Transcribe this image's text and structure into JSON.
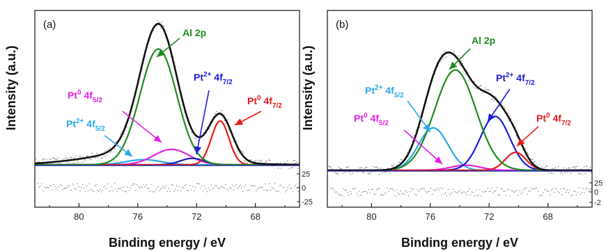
{
  "chart_data": [
    {
      "type": "line",
      "panel_label": "(a)",
      "xlabel": "Binding energy / eV",
      "ylabel": "Intensity (a.u.)",
      "xlim": [
        83,
        65
      ],
      "x_ticks": [
        80,
        76,
        72,
        68
      ],
      "residual_ticks": [
        "25",
        "0",
        "-25"
      ],
      "series": [
        {
          "name": "Envelope",
          "color": "#111111",
          "components": [
            [
              74.6,
              1.0,
              1.25
            ],
            [
              70.4,
              0.36,
              0.8
            ],
            [
              75.6,
              0.1,
              3.5
            ]
          ],
          "baseline": 0.0
        },
        {
          "name": "Al 2p",
          "color": "#1f8a1f",
          "components": [
            [
              74.6,
              0.9,
              1.25
            ]
          ]
        },
        {
          "name": "Pt0 4f7/2",
          "color": "#e31b1b",
          "components": [
            [
              70.4,
              0.34,
              0.6
            ]
          ]
        },
        {
          "name": "Pt2+ 4f7/2",
          "color": "#1b1bd6",
          "components": [
            [
              72.3,
              0.05,
              0.8
            ]
          ]
        },
        {
          "name": "Pt0 4f5/2",
          "color": "#e51ee5",
          "components": [
            [
              73.7,
              0.12,
              1.2
            ]
          ]
        },
        {
          "name": "Pt2+ 4f5/2",
          "color": "#2aa8e8",
          "components": [
            [
              75.6,
              0.04,
              1.2
            ]
          ]
        }
      ],
      "annotations": [
        {
          "base": "Al 2p",
          "sup": "",
          "sub": "",
          "color": "#1f8a1f"
        },
        {
          "base": "Pt",
          "sup": "2+",
          "mid": " 4f",
          "sub": "7/2",
          "color": "#1b1bd6"
        },
        {
          "base": "Pt",
          "sup": "0",
          "mid": " 4f",
          "sub": "7/2",
          "color": "#e31b1b"
        },
        {
          "base": "Pt",
          "sup": "0",
          "mid": " 4f",
          "sub": "5/2",
          "color": "#e51ee5"
        },
        {
          "base": "Pt",
          "sup": "2+",
          "mid": " 4f",
          "sub": "5/2",
          "color": "#2aa8e8"
        }
      ]
    },
    {
      "type": "line",
      "panel_label": "(b)",
      "xlabel": "Binding energy / eV",
      "ylabel": "Intensity (a.u.)",
      "xlim": [
        83,
        65
      ],
      "x_ticks": [
        80,
        76,
        72,
        68
      ],
      "residual_ticks": [
        "25",
        "0",
        "-2"
      ],
      "series": [
        {
          "name": "Envelope",
          "color": "#111111",
          "components": [
            [
              74.3,
              0.78,
              1.4
            ],
            [
              71.6,
              0.42,
              1.0
            ],
            [
              75.8,
              0.3,
              1.0
            ],
            [
              70.2,
              0.14,
              0.7
            ]
          ]
        },
        {
          "name": "Al 2p",
          "color": "#1f8a1f",
          "components": [
            [
              74.3,
              0.78,
              1.4
            ]
          ]
        },
        {
          "name": "Pt0 4f7/2",
          "color": "#e31b1b",
          "components": [
            [
              70.2,
              0.14,
              0.7
            ]
          ]
        },
        {
          "name": "Pt2+ 4f7/2",
          "color": "#1b1bd6",
          "components": [
            [
              71.6,
              0.42,
              1.0
            ]
          ]
        },
        {
          "name": "Pt0 4f5/2",
          "color": "#e51ee5",
          "components": [
            [
              73.6,
              0.04,
              1.0
            ]
          ]
        },
        {
          "name": "Pt2+ 4f5/2",
          "color": "#2aa8e8",
          "components": [
            [
              75.8,
              0.33,
              1.0
            ]
          ]
        }
      ],
      "annotations": [
        {
          "base": "Al 2p",
          "sup": "",
          "sub": "",
          "color": "#1f8a1f"
        },
        {
          "base": "Pt",
          "sup": "2+",
          "mid": " 4f",
          "sub": "7/2",
          "color": "#1b1bd6"
        },
        {
          "base": "Pt",
          "sup": "0",
          "mid": " 4f",
          "sub": "7/2",
          "color": "#e31b1b"
        },
        {
          "base": "Pt",
          "sup": "0",
          "mid": " 4f",
          "sub": "5/2",
          "color": "#e51ee5"
        },
        {
          "base": "Pt",
          "sup": "2+",
          "mid": " 4f",
          "sub": "5/2",
          "color": "#2aa8e8"
        }
      ]
    }
  ]
}
